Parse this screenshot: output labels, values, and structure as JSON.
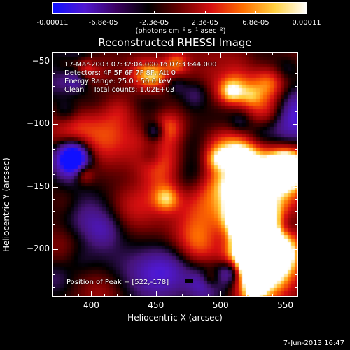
{
  "colorbar": {
    "tick_labels": [
      "-0.00011",
      "-6.8e-05",
      "-2.3e-05",
      "2.3e-05",
      "6.8e-05",
      "0.00011"
    ],
    "units_label": "(photons cm⁻² s⁻¹ asec⁻²)",
    "colors": [
      "#1010ff",
      "#5018d0",
      "#3a0060",
      "#000000",
      "#6a0000",
      "#d81010",
      "#ff7000",
      "#ffd040",
      "#ffffff"
    ]
  },
  "plot": {
    "title": "Reconstructed RHESSI Image",
    "info_lines": [
      "17-Mar-2003 07:32:04.000 to 07:33:44.000",
      "Detectors: 4F 5F 6F 7F 8F, Att 0",
      "Energy Range: 25.0 - 50.0 keV",
      "Clean    Total counts: 1.02E+03"
    ],
    "peak_text": "Position of Peak = [522,-178]",
    "xlabel": "Heliocentric X (arcsec)",
    "ylabel": "Heliocentric Y (arcsec)",
    "x_ticks": [
      "400",
      "450",
      "500",
      "550"
    ],
    "y_ticks": [
      "-50",
      "-100",
      "-150",
      "-200"
    ],
    "x_range": [
      370,
      560
    ],
    "y_range": [
      -238,
      -43
    ]
  },
  "footer": {
    "timestamp": "7-Jun-2013 16:47"
  }
}
